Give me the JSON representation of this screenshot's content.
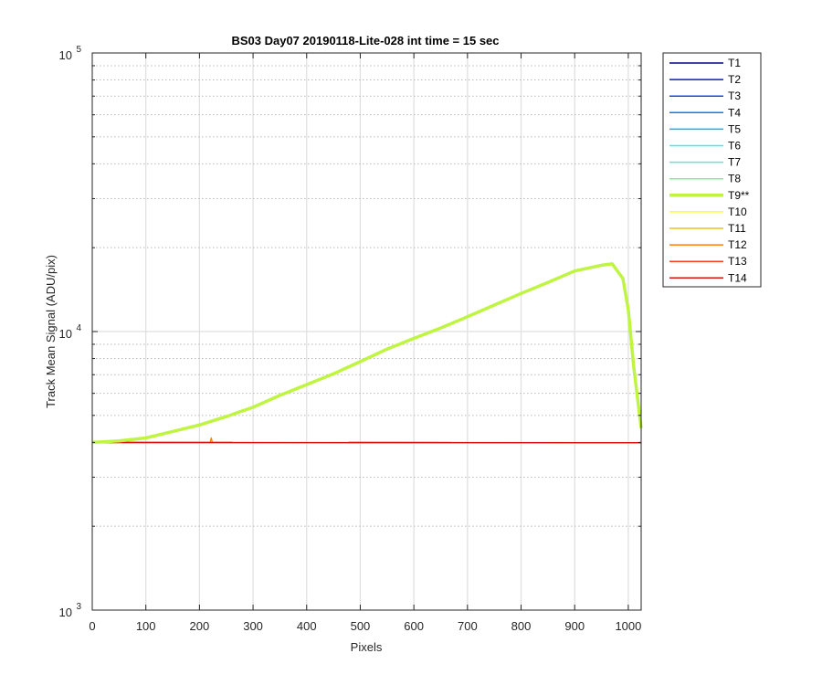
{
  "chart_data": {
    "type": "line",
    "title": "BS03 Day07 20190118-Lite-028 int time = 15 sec",
    "xlabel": "Pixels",
    "ylabel": "Track Mean Signal (ADU/pix)",
    "xlim": [
      0,
      1024
    ],
    "ylim": [
      1000,
      100000
    ],
    "yscale": "log",
    "grid": true,
    "legend_position": "outside-right",
    "x_ticks": [
      "0",
      "100",
      "200",
      "300",
      "400",
      "500",
      "600",
      "700",
      "800",
      "900",
      "1000"
    ],
    "y_ticks": [
      {
        "value": 1000,
        "base": "10",
        "exp": "3"
      },
      {
        "value": 10000,
        "base": "10",
        "exp": "4"
      },
      {
        "value": 100000,
        "base": "10",
        "exp": "5"
      }
    ],
    "series": [
      {
        "name": "T1",
        "color": "#00008f",
        "points": [
          [
            0,
            4000
          ],
          [
            1024,
            3990
          ]
        ]
      },
      {
        "name": "T2",
        "color": "#0020bf",
        "points": [
          [
            0,
            4000
          ],
          [
            1024,
            3990
          ]
        ]
      },
      {
        "name": "T3",
        "color": "#0050ef",
        "points": [
          [
            0,
            4000
          ],
          [
            1024,
            3990
          ]
        ]
      },
      {
        "name": "T4",
        "color": "#0080ff",
        "points": [
          [
            0,
            4000
          ],
          [
            1024,
            3990
          ]
        ]
      },
      {
        "name": "T5",
        "color": "#10b0ff",
        "points": [
          [
            0,
            4000
          ],
          [
            1024,
            3990
          ]
        ]
      },
      {
        "name": "T6",
        "color": "#30f0f0",
        "points": [
          [
            0,
            4000
          ],
          [
            1024,
            3990
          ]
        ]
      },
      {
        "name": "T7",
        "color": "#60e8c8",
        "points": [
          [
            0,
            4000
          ],
          [
            1024,
            3990
          ]
        ]
      },
      {
        "name": "T8",
        "color": "#80f090",
        "points": [
          [
            0,
            4000
          ],
          [
            1024,
            3990
          ]
        ]
      },
      {
        "name": "T9**",
        "color": "#bff542",
        "highlight": true,
        "points": [
          [
            0,
            4000
          ],
          [
            50,
            4050
          ],
          [
            100,
            4150
          ],
          [
            150,
            4380
          ],
          [
            200,
            4620
          ],
          [
            250,
            4950
          ],
          [
            300,
            5350
          ],
          [
            350,
            5900
          ],
          [
            400,
            6450
          ],
          [
            450,
            7050
          ],
          [
            500,
            7800
          ],
          [
            550,
            8650
          ],
          [
            600,
            9450
          ],
          [
            650,
            10300
          ],
          [
            700,
            11300
          ],
          [
            750,
            12450
          ],
          [
            800,
            13700
          ],
          [
            850,
            15000
          ],
          [
            900,
            16500
          ],
          [
            950,
            17300
          ],
          [
            970,
            17500
          ],
          [
            990,
            15500
          ],
          [
            1000,
            12000
          ],
          [
            1010,
            7500
          ],
          [
            1024,
            4500
          ]
        ]
      },
      {
        "name": "T10",
        "color": "#ffff30",
        "points": [
          [
            0,
            4000
          ],
          [
            1024,
            3990
          ]
        ]
      },
      {
        "name": "T11",
        "color": "#f0c020",
        "points": [
          [
            0,
            4000
          ],
          [
            1024,
            3990
          ]
        ]
      },
      {
        "name": "T12",
        "color": "#ff8000",
        "points": [
          [
            0,
            4000
          ],
          [
            220,
            4000
          ],
          [
            222,
            4150
          ],
          [
            224,
            4000
          ],
          [
            1024,
            3990
          ]
        ]
      },
      {
        "name": "T13",
        "color": "#ff4010",
        "points": [
          [
            0,
            4000
          ],
          [
            1024,
            3990
          ]
        ]
      },
      {
        "name": "T14",
        "color": "#e01010",
        "points": [
          [
            0,
            4000
          ],
          [
            1024,
            3990
          ]
        ]
      }
    ]
  }
}
